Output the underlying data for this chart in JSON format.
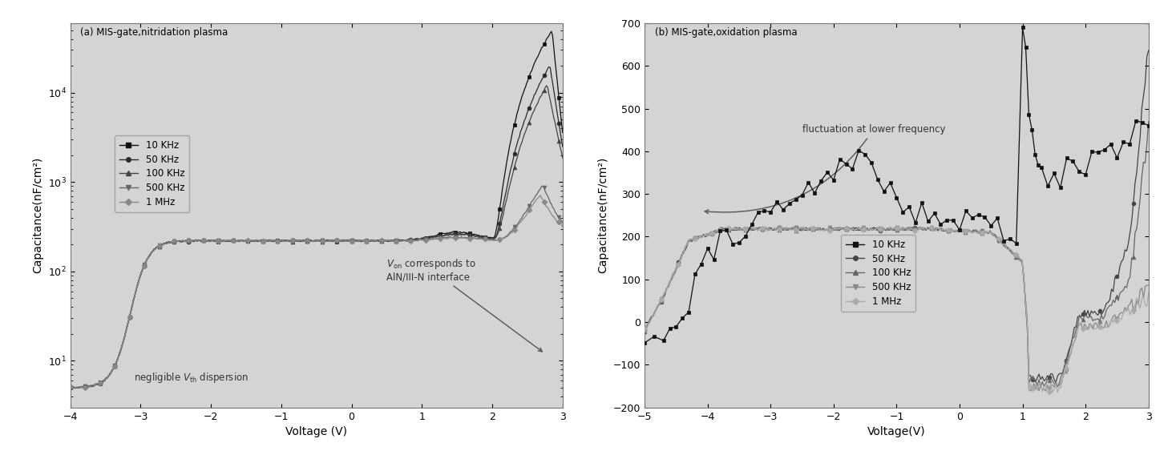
{
  "fig_width": 14.62,
  "fig_height": 5.78,
  "panel_a": {
    "title": "(a) MIS-gate,nitridation plasma",
    "xlabel": "Voltage (V)",
    "ylabel": "Capacitance(nF/cm²)",
    "xlim": [
      -4,
      3
    ],
    "ylim": [
      3,
      60000
    ],
    "annotation1_text": "negligible $V_{\\mathregular{th}}$ dispersion",
    "annotation2_text": "$V_{\\mathregular{on}}$ corresponds to\nAlN/III-N interface",
    "frequencies": [
      "10 KHz",
      "50 KHz",
      "100 KHz",
      "500 KHz",
      "1 MHz"
    ],
    "colors": [
      "#111111",
      "#2a2a2a",
      "#444444",
      "#666666",
      "#888888"
    ],
    "markers": [
      "s",
      "o",
      "^",
      "v",
      "D"
    ]
  },
  "panel_b": {
    "title": "(b) MIS-gate,oxidation plasma",
    "xlabel": "Voltage(V)",
    "ylabel": "Capacitance(nF/cm²)",
    "xlim": [
      -5,
      3
    ],
    "ylim": [
      -200,
      700
    ],
    "yticks": [
      -200,
      -100,
      0,
      100,
      200,
      300,
      400,
      500,
      600,
      700
    ],
    "annotation_text": "fluctuation at lower frequency",
    "frequencies": [
      "10 KHz",
      "50 KHz",
      "100 KHz",
      "500 KHz",
      "1 MHz"
    ],
    "colors": [
      "#111111",
      "#444444",
      "#666666",
      "#888888",
      "#aaaaaa"
    ],
    "markers": [
      "s",
      "o",
      "^",
      "v",
      "D"
    ]
  }
}
